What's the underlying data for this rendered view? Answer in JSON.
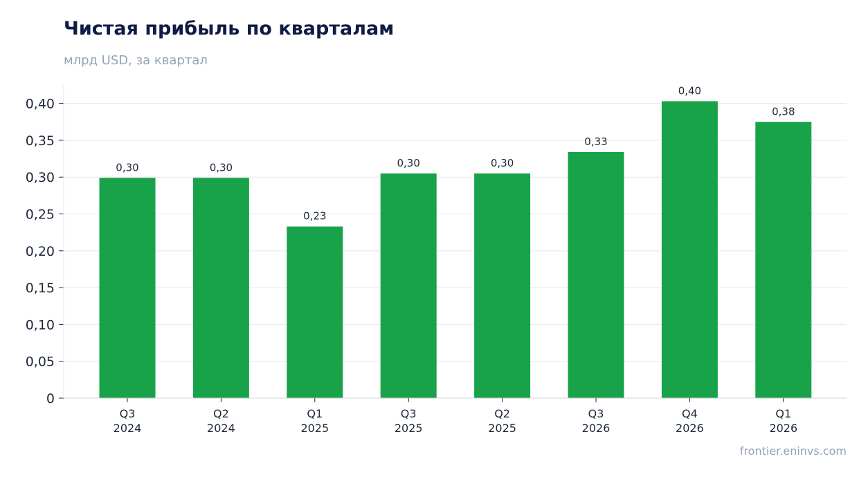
{
  "chart_data": {
    "type": "bar",
    "title": "Чистая прибыль по кварталам",
    "subtitle": "млрд USD, за квартал",
    "categories": [
      [
        "Q3",
        "2024"
      ],
      [
        "Q2",
        "2024"
      ],
      [
        "Q1",
        "2025"
      ],
      [
        "Q3",
        "2025"
      ],
      [
        "Q2",
        "2025"
      ],
      [
        "Q3",
        "2026"
      ],
      [
        "Q4",
        "2026"
      ],
      [
        "Q1",
        "2026"
      ]
    ],
    "values": [
      0.299,
      0.299,
      0.233,
      0.305,
      0.305,
      0.334,
      0.403,
      0.375
    ],
    "data_labels": [
      "0,30",
      "0,30",
      "0,23",
      "0,30",
      "0,30",
      "0,33",
      "0,40",
      "0,38"
    ],
    "y_ticks": [
      0,
      0.05,
      0.1,
      0.15,
      0.2,
      0.25,
      0.3,
      0.35,
      0.4
    ],
    "y_tick_labels": [
      "0",
      "0,05",
      "0,10",
      "0,15",
      "0,20",
      "0,25",
      "0,30",
      "0,35",
      "0,40"
    ],
    "ylim": [
      0,
      0.425
    ],
    "bar_color": "#18a34a",
    "grid": true,
    "legend": false
  },
  "source": "frontier.eninvs.com"
}
